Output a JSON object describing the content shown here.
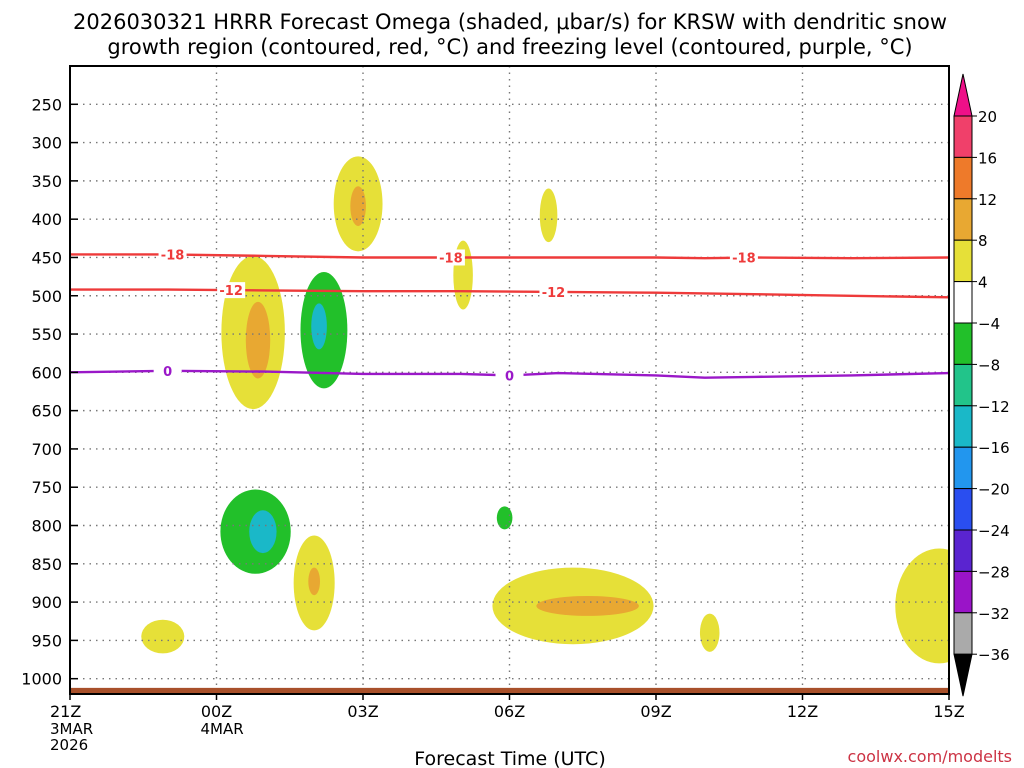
{
  "chart_data": {
    "type": "time-height",
    "title_lines": [
      "2026030321 HRRR Forecast Omega (shaded, μbar/s) for KRSW with dendritic snow",
      "growth region (contoured, red, °C) and freezing level (contoured, purple, °C)"
    ],
    "xlabel": "Forecast Time (UTC)",
    "credit": "coolwx.com/modelts",
    "x_range_hours": [
      0,
      18
    ],
    "x_ticks": [
      {
        "hour": 0,
        "label": "21Z",
        "sub": [
          "3MAR",
          "2026"
        ]
      },
      {
        "hour": 3,
        "label": "00Z",
        "sub": [
          "4MAR"
        ]
      },
      {
        "hour": 6,
        "label": "03Z",
        "sub": []
      },
      {
        "hour": 9,
        "label": "06Z",
        "sub": []
      },
      {
        "hour": 12,
        "label": "09Z",
        "sub": []
      },
      {
        "hour": 15,
        "label": "12Z",
        "sub": []
      },
      {
        "hour": 18,
        "label": "15Z",
        "sub": []
      }
    ],
    "y_axis": "pressure (hPa)",
    "y_ticks": [
      250,
      300,
      350,
      400,
      450,
      500,
      550,
      600,
      650,
      700,
      750,
      800,
      850,
      900,
      950,
      1000
    ],
    "y_range_hpa": [
      200,
      1020
    ],
    "ground_band_hpa": [
      1012,
      1020
    ],
    "colorbar": {
      "levels": [
        20,
        16,
        12,
        8,
        4,
        -4,
        -8,
        -12,
        -16,
        -20,
        -24,
        -28,
        -32,
        -36
      ],
      "colors": [
        "#f0406a",
        "#ee7a2a",
        "#e8a832",
        "#e6e038",
        "#ffffff",
        "#22c02a",
        "#22c48a",
        "#1ab8c8",
        "#2296ee",
        "#2a4ef0",
        "#5a24d0",
        "#9a14c8",
        "#aaaaaa"
      ],
      "top_arrow_color": "#ee1088",
      "bottom_arrow_color": "#000000"
    },
    "contours": [
      {
        "name": "-18C",
        "color": "#ee3a3a",
        "label": "-18",
        "points": [
          [
            0,
            446
          ],
          [
            2,
            446
          ],
          [
            4,
            448
          ],
          [
            6,
            450
          ],
          [
            8,
            450
          ],
          [
            10,
            450
          ],
          [
            12,
            450
          ],
          [
            13,
            451
          ],
          [
            14,
            450
          ],
          [
            16,
            451
          ],
          [
            18,
            450
          ]
        ],
        "label_hours": [
          2.1,
          7.8,
          13.8
        ]
      },
      {
        "name": "-12C",
        "color": "#ee3a3a",
        "label": "-12",
        "points": [
          [
            0,
            492
          ],
          [
            2,
            492
          ],
          [
            4,
            493
          ],
          [
            6,
            494
          ],
          [
            8,
            494
          ],
          [
            10,
            495
          ],
          [
            12,
            496
          ],
          [
            14,
            498
          ],
          [
            16,
            500
          ],
          [
            18,
            502
          ]
        ],
        "label_hours": [
          3.3,
          9.9
        ]
      },
      {
        "name": "freezing",
        "color": "#9a18c8",
        "label": "0",
        "points": [
          [
            0,
            600
          ],
          [
            2,
            598
          ],
          [
            4,
            599
          ],
          [
            6,
            602
          ],
          [
            8,
            602
          ],
          [
            9,
            604
          ],
          [
            10,
            601
          ],
          [
            12,
            604
          ],
          [
            13,
            607
          ],
          [
            14,
            606
          ],
          [
            16,
            604
          ],
          [
            18,
            601
          ]
        ],
        "label_hours": [
          2.0,
          9.0
        ]
      }
    ],
    "omega_regions": [
      {
        "name": "upper-positive-cell",
        "value": 6,
        "center": [
          5.9,
          380
        ],
        "rx": 0.5,
        "ry": 62,
        "inner": {
          "value": 10,
          "center": [
            5.9,
            383
          ],
          "rx": 0.16,
          "ry": 26
        }
      },
      {
        "name": "mid-positive-cell",
        "value": 6,
        "center": [
          3.75,
          548
        ],
        "rx": 0.65,
        "ry": 100,
        "inner": {
          "value": 10,
          "center": [
            3.85,
            558
          ],
          "rx": 0.25,
          "ry": 50
        }
      },
      {
        "name": "mid-negative-cell",
        "value": -6,
        "center": [
          5.2,
          545
        ],
        "rx": 0.48,
        "ry": 76,
        "inner": {
          "value": -12,
          "center": [
            5.1,
            540
          ],
          "rx": 0.16,
          "ry": 30
        }
      },
      {
        "name": "small-positive-450",
        "value": 6,
        "center": [
          8.05,
          473
        ],
        "rx": 0.2,
        "ry": 45
      },
      {
        "name": "small-positive-400",
        "value": 6,
        "center": [
          9.8,
          395
        ],
        "rx": 0.18,
        "ry": 35
      },
      {
        "name": "low-negative-cell",
        "value": -6,
        "center": [
          3.8,
          808
        ],
        "rx": 0.72,
        "ry": 55,
        "inner": {
          "value": -12,
          "center": [
            3.95,
            808
          ],
          "rx": 0.28,
          "ry": 28
        }
      },
      {
        "name": "low-positive-850",
        "value": 6,
        "center": [
          5.0,
          875
        ],
        "rx": 0.42,
        "ry": 62,
        "inner": {
          "value": 10,
          "center": [
            5.0,
            873
          ],
          "rx": 0.12,
          "ry": 18
        }
      },
      {
        "name": "low-positive-945",
        "value": 6,
        "center": [
          1.9,
          945
        ],
        "rx": 0.44,
        "ry": 22
      },
      {
        "name": "small-negative-790",
        "value": -6,
        "center": [
          8.9,
          790
        ],
        "rx": 0.16,
        "ry": 15
      },
      {
        "name": "low-positive-900",
        "value": 6,
        "center": [
          10.3,
          905
        ],
        "rx": 1.65,
        "ry": 50,
        "inner": {
          "value": 10,
          "center": [
            10.6,
            905
          ],
          "rx": 1.05,
          "ry": 13
        }
      },
      {
        "name": "small-positive-940",
        "value": 6,
        "center": [
          13.1,
          940
        ],
        "rx": 0.2,
        "ry": 25
      },
      {
        "name": "corner-positive",
        "value": 6,
        "center": [
          17.8,
          905
        ],
        "rx": 0.9,
        "ry": 75
      }
    ]
  }
}
